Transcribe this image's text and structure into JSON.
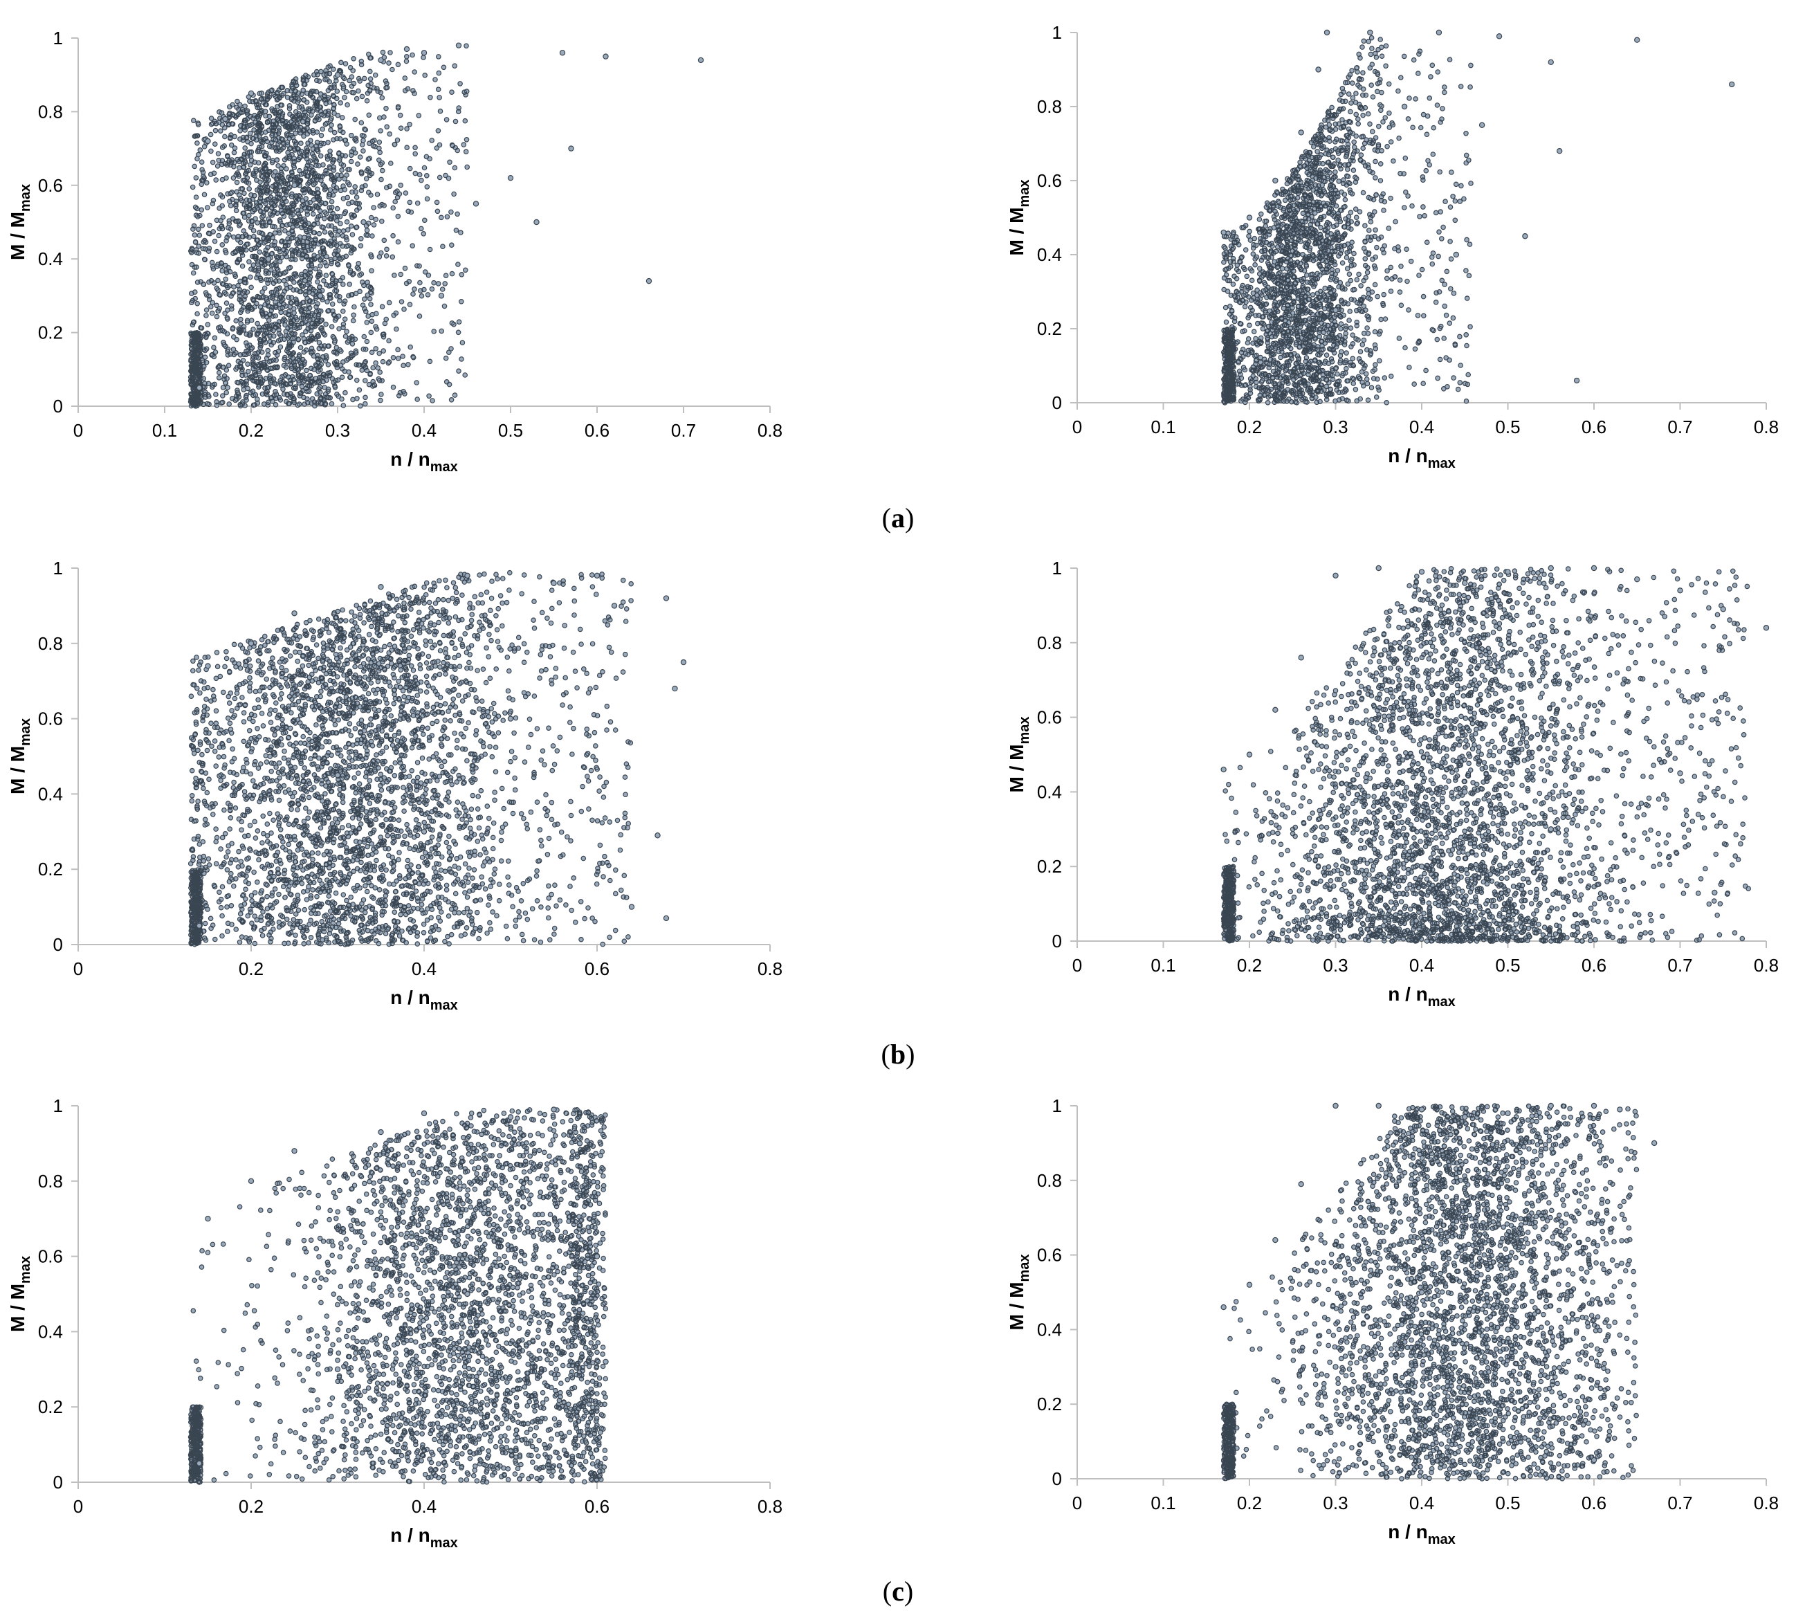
{
  "figure": {
    "panel_labels": [
      {
        "open": "(",
        "letter": "a",
        "close": ")"
      },
      {
        "open": "(",
        "letter": "b",
        "close": ")"
      },
      {
        "open": "(",
        "letter": "c",
        "close": ")"
      }
    ]
  },
  "style": {
    "marker_fill": "#9aaabb",
    "marker_stroke": "#3a4552",
    "axis_color": "#bfbfbf"
  },
  "chart_data": [
    {
      "id": "a-left",
      "type": "scatter",
      "row": 0,
      "col": 0,
      "xlabel": {
        "main": "n / n",
        "sub": "max"
      },
      "ylabel": {
        "main": "M / M",
        "sub": "max"
      },
      "xlim": [
        0,
        0.8
      ],
      "ylim": [
        0,
        1
      ],
      "xticks": [
        "0",
        "0.1",
        "0.2",
        "0.3",
        "0.4",
        "0.5",
        "0.6",
        "0.7",
        "0.8"
      ],
      "yticks": [
        "0",
        "0.2",
        "0.4",
        "0.6",
        "0.8",
        "1"
      ],
      "points": [
        [
          0.14,
          0.05
        ],
        [
          0.15,
          0.72
        ],
        [
          0.17,
          0.78
        ],
        [
          0.2,
          0.85
        ],
        [
          0.22,
          0.4
        ],
        [
          0.25,
          0.6
        ],
        [
          0.28,
          0.3
        ],
        [
          0.3,
          0.9
        ],
        [
          0.33,
          0.5
        ],
        [
          0.35,
          0.94
        ],
        [
          0.38,
          0.97
        ],
        [
          0.4,
          0.96
        ],
        [
          0.42,
          0.3
        ],
        [
          0.44,
          0.98
        ],
        [
          0.46,
          0.55
        ],
        [
          0.5,
          0.62
        ],
        [
          0.53,
          0.5
        ],
        [
          0.56,
          0.96
        ],
        [
          0.57,
          0.7
        ],
        [
          0.61,
          0.95
        ],
        [
          0.66,
          0.34
        ],
        [
          0.72,
          0.94
        ]
      ]
    },
    {
      "id": "a-right",
      "type": "scatter",
      "row": 0,
      "col": 1,
      "xlabel": {
        "main": "n / n",
        "sub": "max"
      },
      "ylabel": {
        "main": "M / M",
        "sub": "max"
      },
      "xlim": [
        0,
        0.8
      ],
      "ylim": [
        0,
        1
      ],
      "xticks": [
        "0",
        "0.1",
        "0.2",
        "0.3",
        "0.4",
        "0.5",
        "0.6",
        "0.7",
        "0.8"
      ],
      "yticks": [
        "0",
        "0.2",
        "0.4",
        "0.6",
        "0.8",
        "1"
      ],
      "points": [
        [
          0.17,
          0.46
        ],
        [
          0.2,
          0.5
        ],
        [
          0.23,
          0.6
        ],
        [
          0.26,
          0.73
        ],
        [
          0.28,
          0.9
        ],
        [
          0.29,
          1.0
        ],
        [
          0.3,
          0.25
        ],
        [
          0.34,
          1.0
        ],
        [
          0.38,
          0.8
        ],
        [
          0.42,
          1.0
        ],
        [
          0.44,
          0.4
        ],
        [
          0.47,
          0.75
        ],
        [
          0.49,
          0.99
        ],
        [
          0.52,
          0.45
        ],
        [
          0.55,
          0.92
        ],
        [
          0.56,
          0.68
        ],
        [
          0.58,
          0.06
        ],
        [
          0.65,
          0.98
        ],
        [
          0.76,
          0.86
        ]
      ]
    },
    {
      "id": "b-left",
      "type": "scatter",
      "row": 1,
      "col": 0,
      "xlabel": {
        "main": "n / n",
        "sub": "max"
      },
      "ylabel": {
        "main": "M / M",
        "sub": "max"
      },
      "xlim": [
        0,
        0.8
      ],
      "ylim": [
        0,
        1
      ],
      "xticks": [
        "0",
        "0.2",
        "0.4",
        "0.6",
        "0.8"
      ],
      "yticks": [
        "0",
        "0.2",
        "0.4",
        "0.6",
        "0.8",
        "1"
      ],
      "points": [
        [
          0.14,
          0.05
        ],
        [
          0.15,
          0.74
        ],
        [
          0.2,
          0.8
        ],
        [
          0.25,
          0.88
        ],
        [
          0.3,
          0.45
        ],
        [
          0.35,
          0.95
        ],
        [
          0.4,
          0.3
        ],
        [
          0.45,
          0.98
        ],
        [
          0.5,
          0.6
        ],
        [
          0.55,
          0.96
        ],
        [
          0.6,
          0.98
        ],
        [
          0.62,
          0.9
        ],
        [
          0.64,
          0.1
        ],
        [
          0.67,
          0.29
        ],
        [
          0.68,
          0.07
        ],
        [
          0.68,
          0.92
        ],
        [
          0.69,
          0.68
        ],
        [
          0.7,
          0.75
        ]
      ]
    },
    {
      "id": "b-right",
      "type": "scatter",
      "row": 1,
      "col": 1,
      "xlabel": {
        "main": "n / n",
        "sub": "max"
      },
      "ylabel": {
        "main": "M / M",
        "sub": "max"
      },
      "xlim": [
        0,
        0.8
      ],
      "ylim": [
        0,
        1
      ],
      "xticks": [
        "0",
        "0.1",
        "0.2",
        "0.3",
        "0.4",
        "0.5",
        "0.6",
        "0.7",
        "0.8"
      ],
      "yticks": [
        "0",
        "0.2",
        "0.4",
        "0.6",
        "0.8",
        "1"
      ],
      "points": [
        [
          0.17,
          0.46
        ],
        [
          0.2,
          0.5
        ],
        [
          0.23,
          0.62
        ],
        [
          0.26,
          0.76
        ],
        [
          0.3,
          0.98
        ],
        [
          0.35,
          1.0
        ],
        [
          0.4,
          0.99
        ],
        [
          0.45,
          0.96
        ],
        [
          0.5,
          0.99
        ],
        [
          0.55,
          1.0
        ],
        [
          0.6,
          1.0
        ],
        [
          0.65,
          0.97
        ],
        [
          0.7,
          0.94
        ],
        [
          0.75,
          0.89
        ],
        [
          0.8,
          0.84
        ],
        [
          0.45,
          0.4
        ],
        [
          0.4,
          0.2
        ],
        [
          0.55,
          0.3
        ],
        [
          0.7,
          0.45
        ],
        [
          0.74,
          0.13
        ]
      ]
    },
    {
      "id": "c-left",
      "type": "scatter",
      "row": 2,
      "col": 0,
      "xlabel": {
        "main": "n / n",
        "sub": "max"
      },
      "ylabel": {
        "main": "M / M",
        "sub": "max"
      },
      "xlim": [
        0,
        0.8
      ],
      "ylim": [
        0,
        1
      ],
      "xticks": [
        "0",
        "0.2",
        "0.4",
        "0.6",
        "0.8"
      ],
      "yticks": [
        "0",
        "0.2",
        "0.4",
        "0.6",
        "0.8",
        "1"
      ],
      "points": [
        [
          0.14,
          0.05
        ],
        [
          0.15,
          0.7
        ],
        [
          0.2,
          0.8
        ],
        [
          0.25,
          0.88
        ],
        [
          0.3,
          0.3
        ],
        [
          0.35,
          0.93
        ],
        [
          0.4,
          0.98
        ],
        [
          0.45,
          0.5
        ],
        [
          0.5,
          0.97
        ],
        [
          0.55,
          0.99
        ],
        [
          0.58,
          0.9
        ],
        [
          0.6,
          0.6
        ],
        [
          0.61,
          0.32
        ]
      ]
    },
    {
      "id": "c-right",
      "type": "scatter",
      "row": 2,
      "col": 1,
      "xlabel": {
        "main": "n / n",
        "sub": "max"
      },
      "ylabel": {
        "main": "M / M",
        "sub": "max"
      },
      "xlim": [
        0,
        0.8
      ],
      "ylim": [
        0,
        1
      ],
      "xticks": [
        "0",
        "0.1",
        "0.2",
        "0.3",
        "0.4",
        "0.5",
        "0.6",
        "0.7",
        "0.8"
      ],
      "yticks": [
        "0",
        "0.2",
        "0.4",
        "0.6",
        "0.8",
        "1"
      ],
      "points": [
        [
          0.17,
          0.46
        ],
        [
          0.2,
          0.52
        ],
        [
          0.23,
          0.64
        ],
        [
          0.26,
          0.79
        ],
        [
          0.3,
          1.0
        ],
        [
          0.35,
          1.0
        ],
        [
          0.4,
          0.99
        ],
        [
          0.45,
          0.97
        ],
        [
          0.5,
          0.98
        ],
        [
          0.55,
          1.0
        ],
        [
          0.6,
          1.0
        ],
        [
          0.63,
          0.99
        ],
        [
          0.67,
          0.9
        ],
        [
          0.4,
          0.5
        ],
        [
          0.5,
          0.4
        ],
        [
          0.3,
          0.3
        ],
        [
          0.6,
          0.05
        ]
      ]
    }
  ]
}
